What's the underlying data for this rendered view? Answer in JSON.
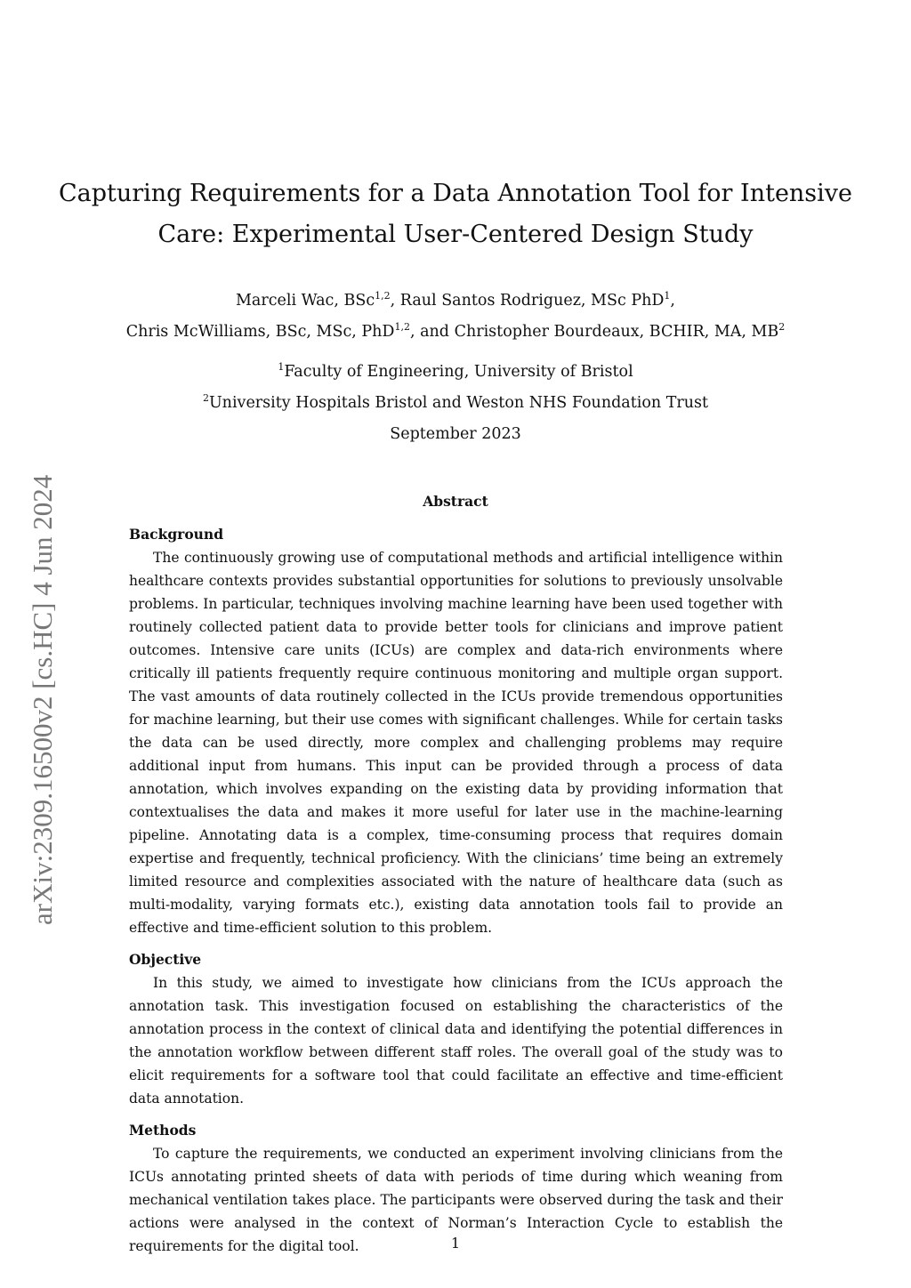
{
  "sidebar": "arXiv:2309.16500v2  [cs.HC]  4 Jun 2024",
  "title": [
    "Capturing Requirements for a Data Annotation Tool for Intensive",
    "Care: Experimental User-Centered Design Study"
  ],
  "authors": {
    "a1": "Marceli Wac, BSc",
    "a1s": "1,2",
    "a2": ", Raul Santos Rodriguez, MSc PhD",
    "a2s": "1",
    "a2e": ",",
    "a3": "Chris McWilliams, BSc, MSc, PhD",
    "a3s": "1,2",
    "a4": ", and Christopher Bourdeaux, BCHIR, MA, MB",
    "a4s": "2"
  },
  "affiliations": [
    {
      "n": "1",
      "t": "Faculty of Engineering, University of Bristol"
    },
    {
      "n": "2",
      "t": "University Hospitals Bristol and Weston NHS Foundation Trust"
    }
  ],
  "date": "September 2023",
  "abstract_heading": "Abstract",
  "sections": [
    {
      "heading": "Background",
      "text": "The continuously growing use of computational methods and artificial intelligence within healthcare contexts provides substantial opportunities for solutions to previously unsolvable problems. In particular, techniques involving machine learning have been used together with routinely collected patient data to provide better tools for clinicians and improve patient outcomes. Intensive care units (ICUs) are complex and data-rich environments where critically ill patients frequently require continuous monitoring and multiple organ support. The vast amounts of data routinely collected in the ICUs provide tremendous opportunities for machine learning, but their use comes with significant challenges. While for certain tasks the data can be used directly, more complex and challenging problems may require additional input from humans. This input can be provided through a process of data annotation, which involves expanding on the existing data by providing information that contextualises the data and makes it more useful for later use in the machine-learning pipeline. Annotating data is a complex, time-consuming process that requires domain expertise and frequently, technical proficiency. With the clinicians’ time being an extremely limited resource and complexities associated with the nature of healthcare data (such as multi-modality, varying formats etc.), existing data annotation tools fail to provide an effective and time-efficient solution to this problem."
    },
    {
      "heading": "Objective",
      "text": "In this study, we aimed to investigate how clinicians from the ICUs approach the annotation task. This investigation focused on establishing the characteristics of the annotation process in the context of clinical data and identifying the potential differences in the annotation workflow between different staff roles. The overall goal of the study was to elicit requirements for a software tool that could facilitate an effective and time-efficient data annotation."
    },
    {
      "heading": "Methods",
      "text": "To capture the requirements, we conducted an experiment involving clinicians from the ICUs annotating printed sheets of data with periods of time during which weaning from mechanical ventilation takes place. The participants were observed during the task and their actions were analysed in the context of Norman’s Interaction Cycle to establish the requirements for the digital tool."
    }
  ],
  "page_number": "1"
}
